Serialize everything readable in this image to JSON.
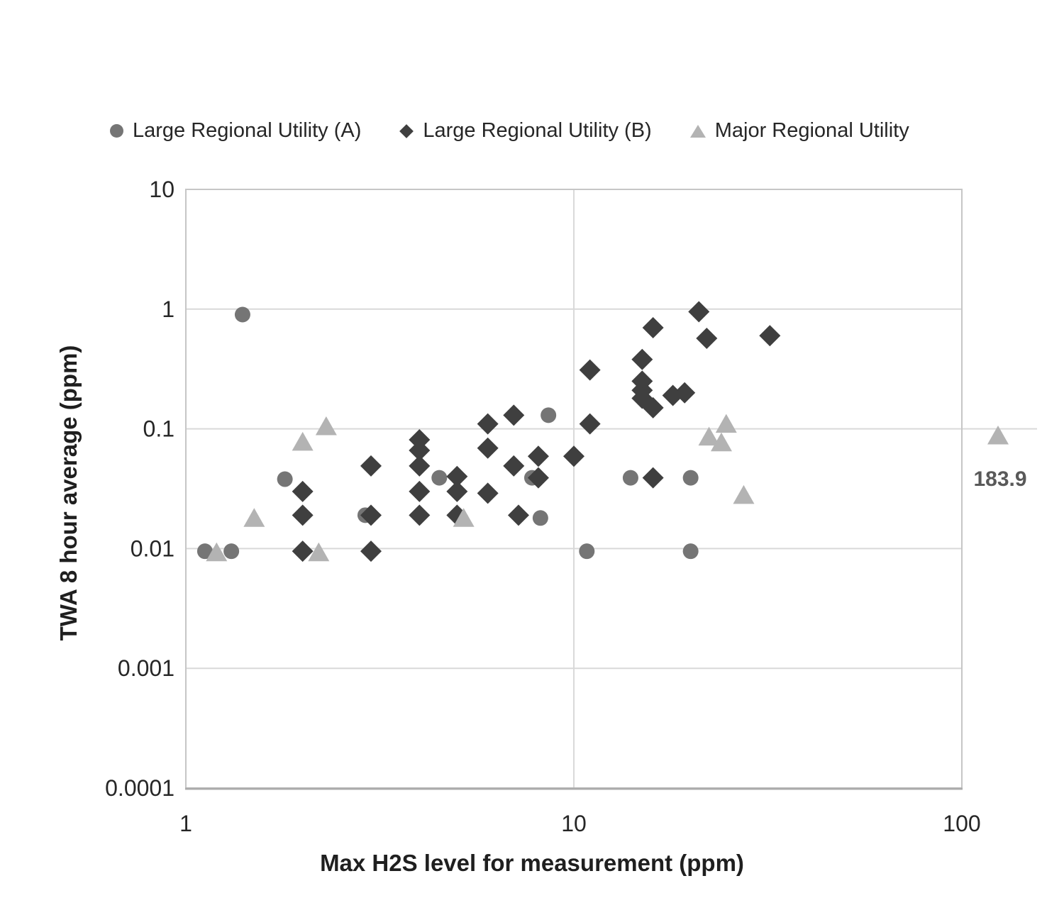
{
  "legend": {
    "items": [
      {
        "label": "Large Regional Utility (A)",
        "marker": "circle",
        "color": "#757575"
      },
      {
        "label": "Large Regional Utility (B)",
        "marker": "diamond",
        "color": "#3f3f3f"
      },
      {
        "label": "Major Regional Utility",
        "marker": "triangle",
        "color": "#b3b3b3"
      }
    ]
  },
  "axes": {
    "x": {
      "title": "Max H2S level for measurement (ppm)",
      "min": 1,
      "max": 100,
      "ticks": [
        1,
        10,
        100
      ],
      "tick_labels": [
        "1",
        "10",
        "100"
      ],
      "scale": "log"
    },
    "y": {
      "title": "TWA 8 hour average (ppm)",
      "min": 0.0001,
      "max": 10,
      "ticks": [
        10,
        1,
        0.1,
        0.01,
        0.001,
        0.0001
      ],
      "tick_labels": [
        "10",
        "1",
        "0.1",
        "0.01",
        "0.001",
        "0.0001"
      ],
      "scale": "log"
    }
  },
  "chart_data": {
    "type": "scatter",
    "title": "",
    "xlabel": "Max H2S level for measurement (ppm)",
    "ylabel": "TWA 8 hour average (ppm)",
    "xlim": [
      1,
      100
    ],
    "ylim": [
      0.0001,
      10
    ],
    "grid": true,
    "legend_position": "top",
    "series": [
      {
        "name": "Large Regional Utility (A)",
        "marker": "circle",
        "color": "#757575",
        "points": [
          [
            1.4,
            0.9
          ],
          [
            1.12,
            0.0095
          ],
          [
            1.31,
            0.0095
          ],
          [
            1.8,
            0.038
          ],
          [
            2.9,
            0.019
          ],
          [
            4.5,
            0.039
          ],
          [
            7.8,
            0.039
          ],
          [
            8.2,
            0.018
          ],
          [
            8.6,
            0.13
          ],
          [
            10.8,
            0.0095
          ],
          [
            14,
            0.039
          ],
          [
            20,
            0.039
          ],
          [
            20,
            0.0095
          ]
        ]
      },
      {
        "name": "Large Regional Utility (B)",
        "marker": "diamond",
        "color": "#3f3f3f",
        "points": [
          [
            2.0,
            0.03
          ],
          [
            2.0,
            0.019
          ],
          [
            2.0,
            0.0095
          ],
          [
            3.0,
            0.049
          ],
          [
            3.0,
            0.019
          ],
          [
            3.0,
            0.0095
          ],
          [
            4.0,
            0.081
          ],
          [
            4.0,
            0.066
          ],
          [
            4.0,
            0.049
          ],
          [
            4.0,
            0.03
          ],
          [
            4.0,
            0.019
          ],
          [
            5.0,
            0.04
          ],
          [
            5.0,
            0.03
          ],
          [
            5.0,
            0.019
          ],
          [
            6.0,
            0.11
          ],
          [
            6.0,
            0.069
          ],
          [
            6.0,
            0.029
          ],
          [
            7.0,
            0.13
          ],
          [
            7.0,
            0.049
          ],
          [
            7.2,
            0.019
          ],
          [
            8.1,
            0.059
          ],
          [
            8.1,
            0.039
          ],
          [
            10,
            0.059
          ],
          [
            11,
            0.11
          ],
          [
            11,
            0.31
          ],
          [
            15,
            0.38
          ],
          [
            15,
            0.25
          ],
          [
            15,
            0.21
          ],
          [
            15,
            0.18
          ],
          [
            16,
            0.15
          ],
          [
            18,
            0.19
          ],
          [
            19.3,
            0.2
          ],
          [
            16,
            0.7
          ],
          [
            21,
            0.95
          ],
          [
            22,
            0.57
          ],
          [
            32,
            0.6
          ],
          [
            16,
            0.039
          ]
        ]
      },
      {
        "name": "Major Regional Utility",
        "marker": "triangle",
        "color": "#b3b3b3",
        "points": [
          [
            1.2,
            0.0093
          ],
          [
            2.2,
            0.0093
          ],
          [
            1.5,
            0.018
          ],
          [
            2.0,
            0.078
          ],
          [
            2.3,
            0.105
          ],
          [
            5.2,
            0.018
          ],
          [
            22.3,
            0.086
          ],
          [
            24,
            0.077
          ],
          [
            24.7,
            0.11
          ],
          [
            27.4,
            0.028
          ]
        ],
        "outlier": {
          "x": 183.9,
          "y": 0.088,
          "label": "183.9",
          "plotted_beyond_axis": true
        }
      }
    ]
  },
  "annotation": {
    "outlier_label": "183.9"
  }
}
